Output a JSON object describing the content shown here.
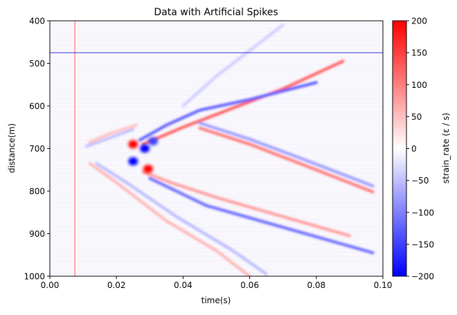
{
  "chart_data": {
    "type": "heatmap",
    "title": "Data with Artificial Spikes",
    "xlabel": "time(s)",
    "ylabel": "distance(m)",
    "xlim": [
      0.0,
      0.1
    ],
    "ylim": [
      1000,
      400
    ],
    "x_ticks": [
      0.0,
      0.02,
      0.04,
      0.06,
      0.08,
      0.1
    ],
    "x_tick_labels": [
      "0.00",
      "0.02",
      "0.04",
      "0.06",
      "0.08",
      "0.10"
    ],
    "y_ticks": [
      400,
      500,
      600,
      700,
      800,
      900,
      1000
    ],
    "y_tick_labels": [
      "400",
      "500",
      "600",
      "700",
      "800",
      "900",
      "1000"
    ],
    "colormap": "bwr",
    "colorbar": {
      "label": "strain_rate (ε / s)",
      "range": [
        -200,
        200
      ],
      "ticks": [
        200,
        150,
        100,
        50,
        0,
        -50,
        -100,
        -150,
        -200
      ],
      "tick_labels": [
        "200",
        "150",
        "100",
        "50",
        "0",
        "−50",
        "−100",
        "−150",
        "−200"
      ],
      "colors": {
        "low": "#0000ff",
        "mid": "#ffffff",
        "high": "#ff0000"
      }
    },
    "spikes": [
      {
        "orientation": "vertical",
        "time": 0.0075,
        "color": "#ff5555"
      },
      {
        "orientation": "horizontal",
        "distance": 475,
        "color": "#3333dd"
      }
    ],
    "features": [
      {
        "name": "upper-red-wavefront",
        "value": 130,
        "points": [
          [
            0.028,
            690
          ],
          [
            0.04,
            650
          ],
          [
            0.055,
            605
          ],
          [
            0.07,
            560
          ],
          [
            0.088,
            495
          ]
        ]
      },
      {
        "name": "upper-blue-wavefront",
        "value": -130,
        "points": [
          [
            0.027,
            680
          ],
          [
            0.035,
            645
          ],
          [
            0.045,
            610
          ],
          [
            0.06,
            585
          ],
          [
            0.08,
            545
          ]
        ]
      },
      {
        "name": "middle-red-diagonal",
        "value": 110,
        "points": [
          [
            0.045,
            652
          ],
          [
            0.06,
            690
          ],
          [
            0.075,
            735
          ],
          [
            0.097,
            802
          ]
        ]
      },
      {
        "name": "middle-blue-diagonal",
        "value": -80,
        "points": [
          [
            0.045,
            640
          ],
          [
            0.06,
            678
          ],
          [
            0.075,
            722
          ],
          [
            0.097,
            788
          ]
        ]
      },
      {
        "name": "lower-red-wavefront",
        "value": 80,
        "points": [
          [
            0.028,
            755
          ],
          [
            0.037,
            782
          ],
          [
            0.05,
            815
          ],
          [
            0.07,
            860
          ],
          [
            0.09,
            905
          ]
        ]
      },
      {
        "name": "lower-blue-wavefront",
        "value": -120,
        "points": [
          [
            0.03,
            770
          ],
          [
            0.047,
            834
          ],
          [
            0.07,
            885
          ],
          [
            0.097,
            945
          ]
        ]
      },
      {
        "name": "upper-left-wing",
        "value": -50,
        "points": [
          [
            0.025,
            655
          ],
          [
            0.018,
            675
          ],
          [
            0.011,
            695
          ]
        ]
      },
      {
        "name": "upper-left-wing-red",
        "value": 50,
        "points": [
          [
            0.026,
            645
          ],
          [
            0.018,
            665
          ],
          [
            0.012,
            685
          ]
        ]
      },
      {
        "name": "lower-left-wing-red",
        "value": 60,
        "points": [
          [
            0.012,
            735
          ],
          [
            0.02,
            780
          ],
          [
            0.035,
            870
          ],
          [
            0.05,
            940
          ],
          [
            0.06,
            1000
          ]
        ]
      },
      {
        "name": "lower-left-wing-blue",
        "value": -55,
        "points": [
          [
            0.014,
            735
          ],
          [
            0.023,
            780
          ],
          [
            0.038,
            860
          ],
          [
            0.055,
            940
          ],
          [
            0.065,
            995
          ]
        ]
      },
      {
        "name": "upper-faint-branch",
        "value": -40,
        "points": [
          [
            0.04,
            600
          ],
          [
            0.05,
            530
          ],
          [
            0.06,
            470
          ],
          [
            0.07,
            410
          ]
        ]
      }
    ],
    "blobs": [
      {
        "time": 0.025,
        "distance": 690,
        "value": 200
      },
      {
        "time": 0.0285,
        "distance": 700,
        "value": -200
      },
      {
        "time": 0.025,
        "distance": 730,
        "value": -200
      },
      {
        "time": 0.0295,
        "distance": 748,
        "value": 200
      },
      {
        "time": 0.031,
        "distance": 683,
        "value": -150
      }
    ],
    "grid": false
  }
}
